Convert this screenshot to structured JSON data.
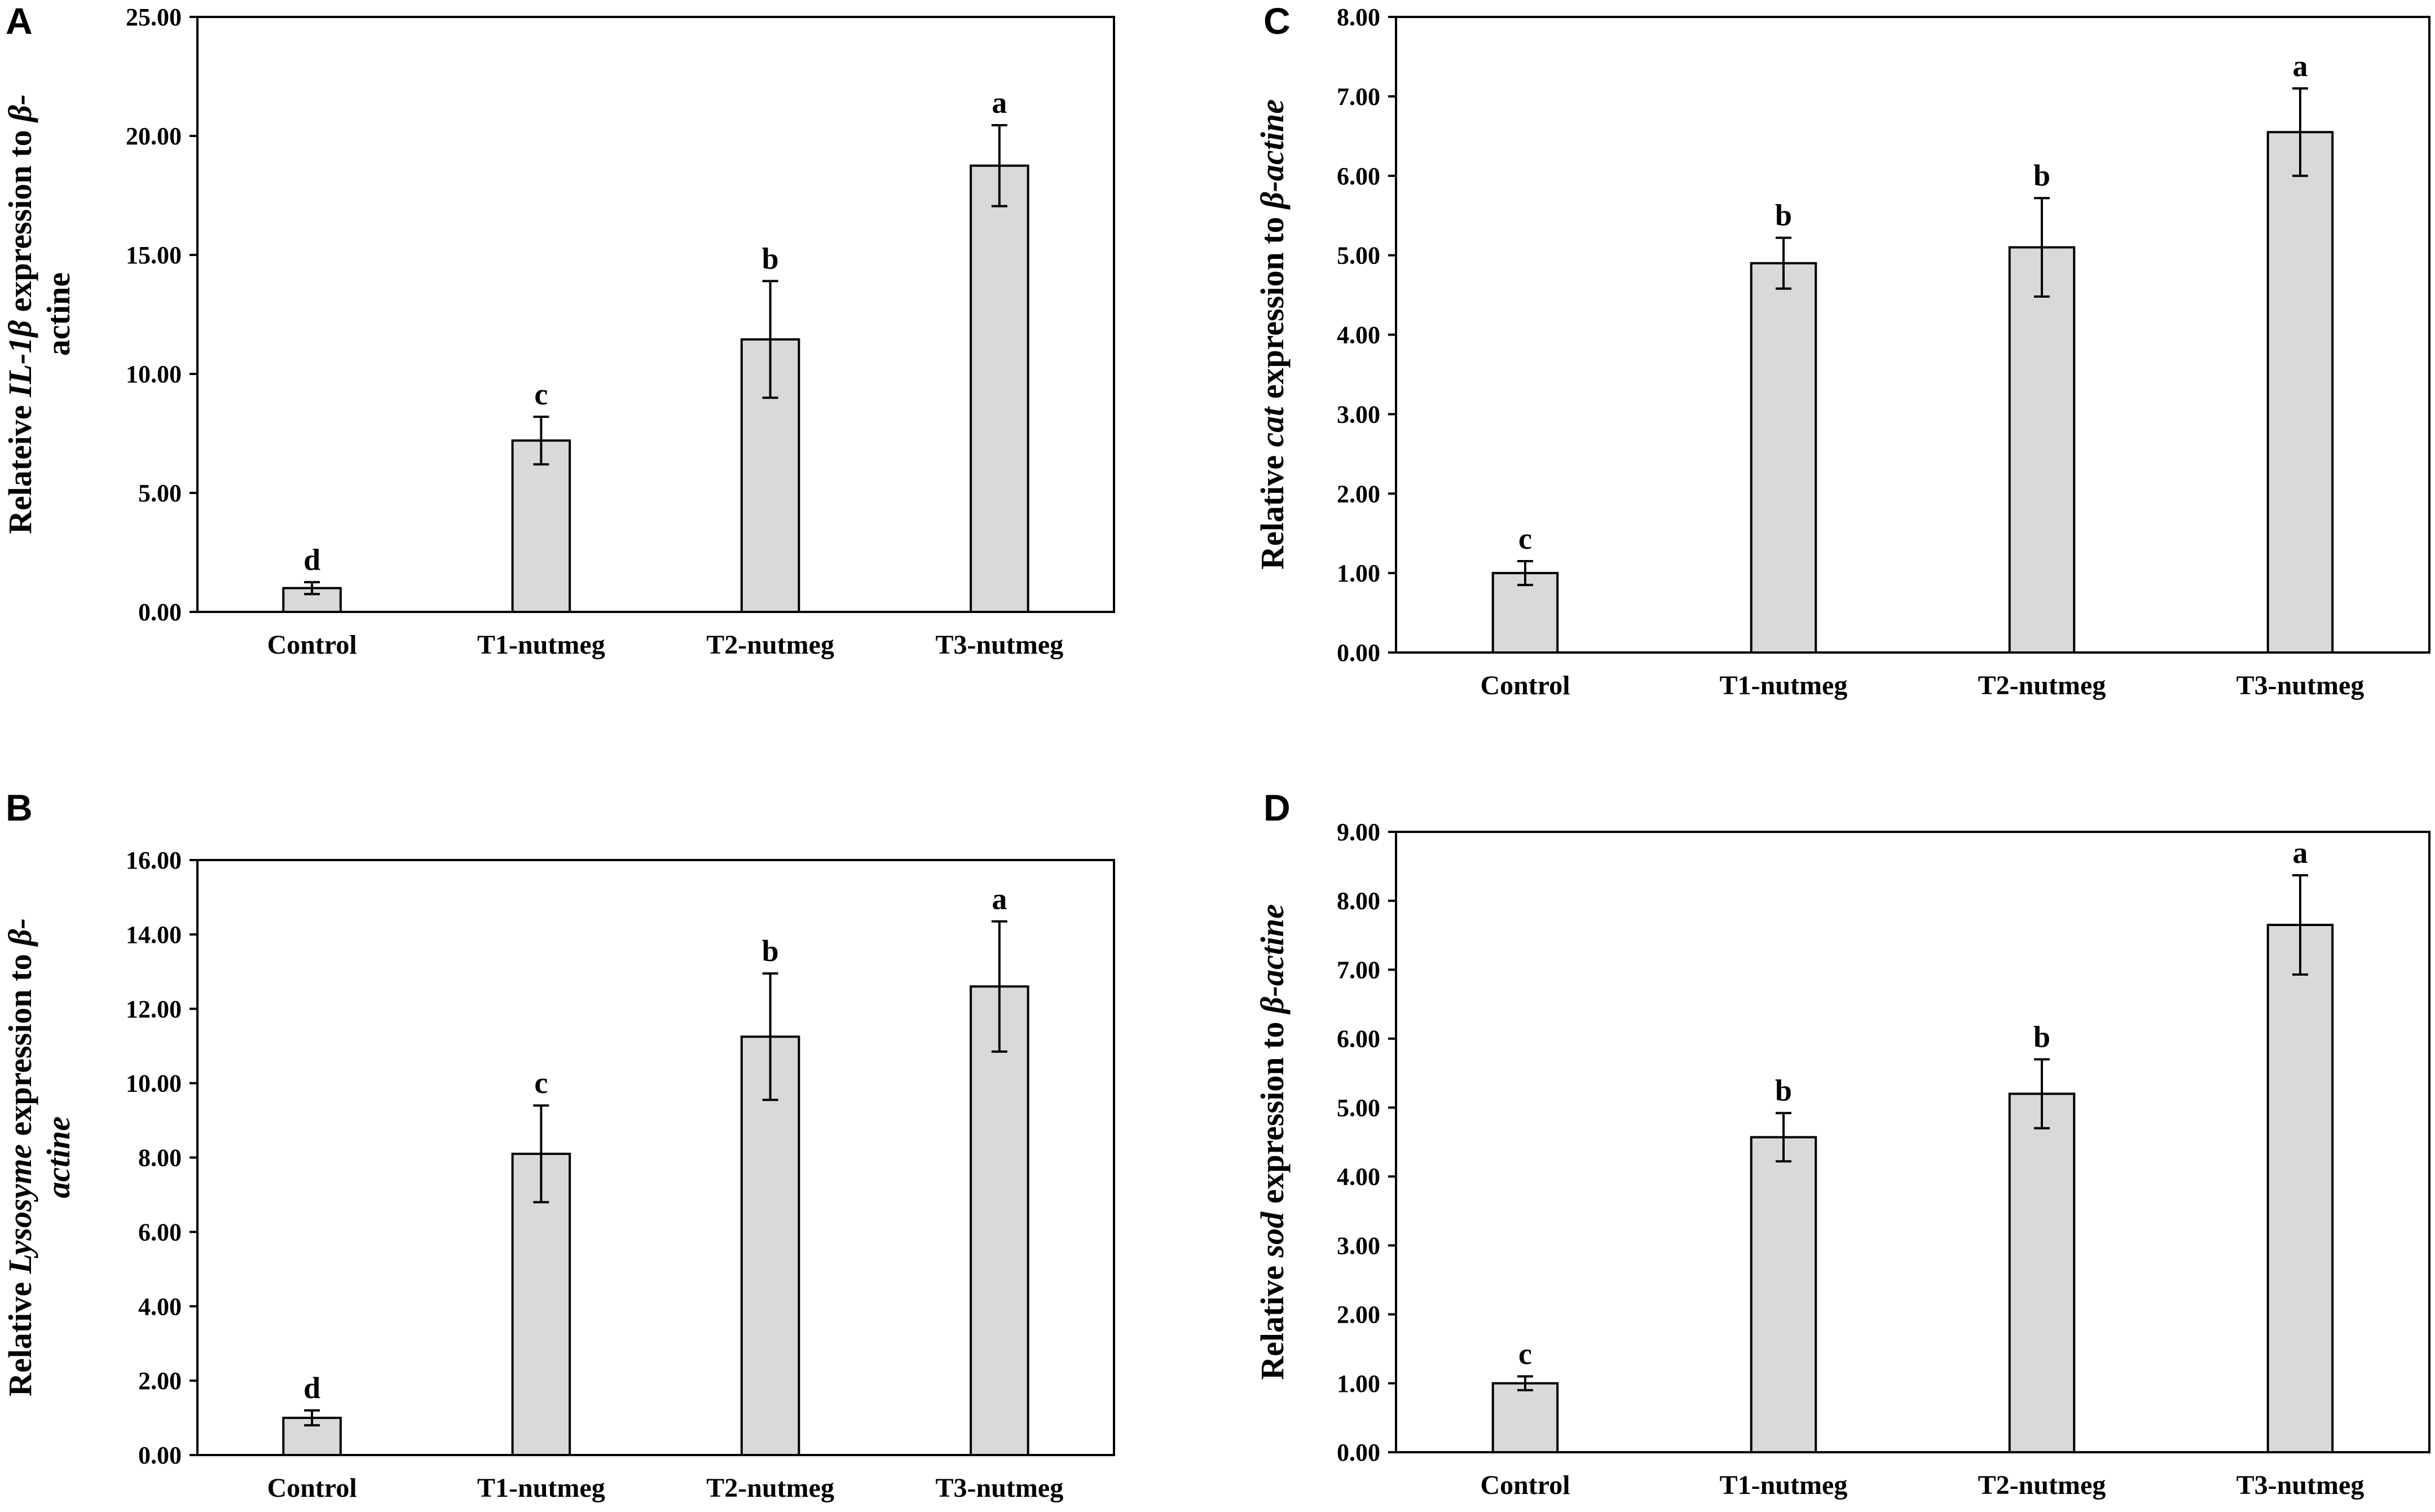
{
  "chart_data": [
    {
      "panel": "A",
      "type": "bar",
      "categories": [
        "Control",
        "T1-nutmeg",
        "T2-nutmeg",
        "T3-nutmeg"
      ],
      "values": [
        1.0,
        7.2,
        11.45,
        18.75
      ],
      "errors": [
        0.25,
        1.0,
        2.45,
        1.7
      ],
      "letters": [
        "d",
        "c",
        "b",
        "a"
      ],
      "ylim": [
        0,
        25
      ],
      "yticks": [
        "0.00",
        "5.00",
        "10.00",
        "15.00",
        "20.00",
        "25.00"
      ],
      "ylabel_lines": [
        [
          {
            "t": "Relateive "
          },
          {
            "t": "IL-1β",
            "i": true
          },
          {
            "t": " expression to "
          },
          {
            "t": "β-",
            "i": true
          }
        ],
        [
          {
            "t": "actine"
          }
        ]
      ],
      "xlabel": ""
    },
    {
      "panel": "B",
      "type": "bar",
      "categories": [
        "Control",
        "T1-nutmeg",
        "T2-nutmeg",
        "T3-nutmeg"
      ],
      "values": [
        1.0,
        8.1,
        11.25,
        12.6
      ],
      "errors": [
        0.2,
        1.3,
        1.7,
        1.75
      ],
      "letters": [
        "d",
        "c",
        "b",
        "a"
      ],
      "ylim": [
        0,
        16
      ],
      "yticks": [
        "0.00",
        "2.00",
        "4.00",
        "6.00",
        "8.00",
        "10.00",
        "12.00",
        "14.00",
        "16.00"
      ],
      "ylabel_lines": [
        [
          {
            "t": "Relative "
          },
          {
            "t": "Lysosyme",
            "i": true
          },
          {
            "t": " expression to "
          },
          {
            "t": "β-",
            "i": true
          }
        ],
        [
          {
            "t": "actine",
            "i": true
          }
        ]
      ],
      "xlabel": ""
    },
    {
      "panel": "C",
      "type": "bar",
      "categories": [
        "Control",
        "T1-nutmeg",
        "T2-nutmeg",
        "T3-nutmeg"
      ],
      "values": [
        1.0,
        4.9,
        5.1,
        6.55
      ],
      "errors": [
        0.15,
        0.32,
        0.62,
        0.55
      ],
      "letters": [
        "c",
        "b",
        "b",
        "a"
      ],
      "ylim": [
        0,
        8
      ],
      "yticks": [
        "0.00",
        "1.00",
        "2.00",
        "3.00",
        "4.00",
        "5.00",
        "6.00",
        "7.00",
        "8.00"
      ],
      "ylabel_lines": [
        [
          {
            "t": "Relative "
          },
          {
            "t": "cat",
            "i": true
          },
          {
            "t": " expression to "
          },
          {
            "t": "β-actine",
            "i": true
          }
        ]
      ],
      "xlabel": ""
    },
    {
      "panel": "D",
      "type": "bar",
      "categories": [
        "Control",
        "T1-nutmeg",
        "T2-nutmeg",
        "T3-nutmeg"
      ],
      "values": [
        1.0,
        4.57,
        5.2,
        7.65
      ],
      "errors": [
        0.1,
        0.35,
        0.5,
        0.72
      ],
      "letters": [
        "c",
        "b",
        "b",
        "a"
      ],
      "ylim": [
        0,
        9
      ],
      "yticks": [
        "0.00",
        "1.00",
        "2.00",
        "3.00",
        "4.00",
        "5.00",
        "6.00",
        "7.00",
        "8.00",
        "9.00"
      ],
      "ylabel_lines": [
        [
          {
            "t": "Relative "
          },
          {
            "t": "sod",
            "i": true
          },
          {
            "t": " expression to "
          },
          {
            "t": "β-actine",
            "i": true
          }
        ]
      ],
      "xlabel": ""
    }
  ],
  "colors": {
    "bar_fill": "#d9d9d9",
    "stroke": "#000000"
  }
}
